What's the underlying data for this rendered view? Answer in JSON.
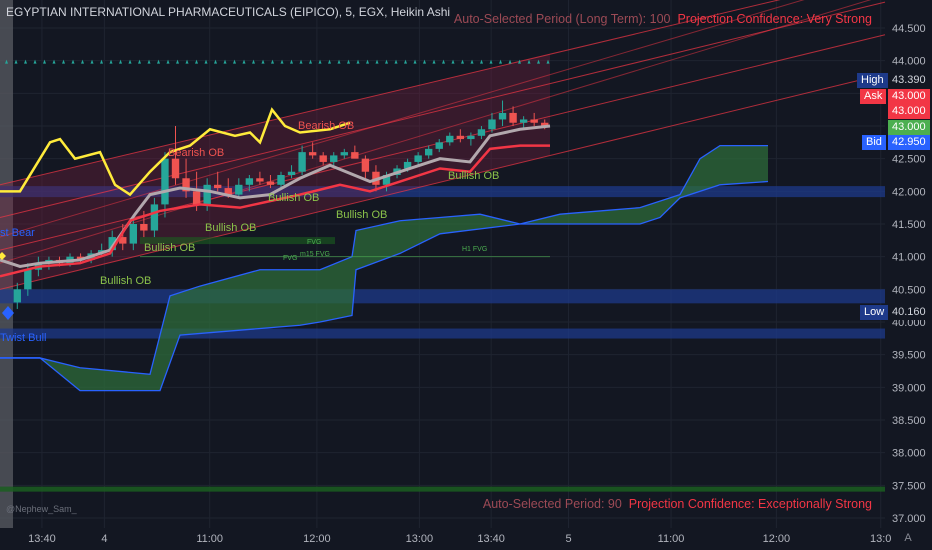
{
  "header": {
    "title": "EGYPTIAN INTERNATIONAL PHARMACEUTICALS (EIPICO), 5, EGX, Heikin Ashi"
  },
  "annotations": {
    "top_period": "Auto-Selected Period (Long Term): 100",
    "top_confidence": "Projection Confidence: Very Strong",
    "bottom_period": "Auto-Selected Period: 90",
    "bottom_confidence": "Projection Confidence: Exceptionally Strong",
    "credit": "@Nephew_Sam_"
  },
  "price_labels": {
    "high_label": "High",
    "high_value": "43.390",
    "ask_label": "Ask",
    "ask_value": "43.000",
    "last_value": "43.000",
    "bid_label": "Bid",
    "bid_value": "42.950",
    "mid_value": "42.950",
    "low_label": "Low",
    "low_value": "40.160"
  },
  "colors": {
    "background": "#131722",
    "bull": "#089981",
    "bear": "#f23645",
    "cloud": "#2e6b3a",
    "cloud_edge": "#2962ff",
    "yellow": "#ffeb3b",
    "band_blue": "#1e3a8a",
    "high_bg": "#1e3a8a",
    "last_bg": "#4caf50"
  },
  "chart_labels": {
    "bearish_ob_1": "Bearish OB",
    "bearish_ob_2": "Bearish OB",
    "bullish_ob_1": "Bullish OB",
    "bullish_ob_2": "Bullish OB",
    "bullish_ob_3": "Bullish OB",
    "bullish_ob_4": "Bullish OB",
    "bullish_ob_5": "Bullish OB",
    "fvg_1": "FVG",
    "fvg_2": "FVG",
    "fvg_m15": "m15 FVG",
    "fvg_h1": "H1 FVG",
    "bear_tag": "st Bear",
    "bull_tag": "Twist Bull"
  },
  "chart_data": {
    "type": "candlestick",
    "y_ticks": [
      "44.500",
      "44.000",
      "43.500",
      "43.000",
      "42.500",
      "42.000",
      "41.500",
      "41.000",
      "40.500",
      "40.000",
      "39.500",
      "39.000",
      "38.500",
      "38.000",
      "37.500",
      "37.000"
    ],
    "y_values": [
      44.5,
      44.0,
      43.5,
      43.0,
      42.5,
      42.0,
      41.5,
      41.0,
      40.5,
      40.0,
      39.5,
      39.0,
      38.5,
      38.0,
      37.5,
      37.0
    ],
    "ylim": [
      36.9,
      44.9
    ],
    "x_ticks": [
      {
        "label": "13:40",
        "x": 0.045
      },
      {
        "label": "4",
        "x": 0.112
      },
      {
        "label": "11:00",
        "x": 0.225
      },
      {
        "label": "12:00",
        "x": 0.34
      },
      {
        "label": "13:00",
        "x": 0.45
      },
      {
        "label": "13:40",
        "x": 0.527
      },
      {
        "label": "5",
        "x": 0.61
      },
      {
        "label": "11:00",
        "x": 0.72
      },
      {
        "label": "12:00",
        "x": 0.833
      },
      {
        "label": "13:0",
        "x": 0.945
      }
    ],
    "candles": [
      [
        40.3,
        40.6,
        40.2,
        40.5
      ],
      [
        40.5,
        40.9,
        40.4,
        40.8
      ],
      [
        40.8,
        41.0,
        40.7,
        40.9
      ],
      [
        40.9,
        41.0,
        40.8,
        40.95
      ],
      [
        40.95,
        41.0,
        40.85,
        40.9
      ],
      [
        40.9,
        41.05,
        40.85,
        41.0
      ],
      [
        41.0,
        41.05,
        40.9,
        40.95
      ],
      [
        40.95,
        41.1,
        40.9,
        41.05
      ],
      [
        41.05,
        41.2,
        41.0,
        41.1
      ],
      [
        41.1,
        41.4,
        41.0,
        41.3
      ],
      [
        41.3,
        41.5,
        41.1,
        41.2
      ],
      [
        41.2,
        41.6,
        41.1,
        41.5
      ],
      [
        41.5,
        41.7,
        41.3,
        41.4
      ],
      [
        41.4,
        41.9,
        41.3,
        41.8
      ],
      [
        41.8,
        42.6,
        41.6,
        42.5
      ],
      [
        42.5,
        43.0,
        42.1,
        42.2
      ],
      [
        42.2,
        42.5,
        41.9,
        42.0
      ],
      [
        42.0,
        42.3,
        41.7,
        41.8
      ],
      [
        41.8,
        42.2,
        41.7,
        42.1
      ],
      [
        42.1,
        42.3,
        42.0,
        42.05
      ],
      [
        42.05,
        42.2,
        41.9,
        41.95
      ],
      [
        41.95,
        42.2,
        41.9,
        42.1
      ],
      [
        42.1,
        42.25,
        42.0,
        42.2
      ],
      [
        42.2,
        42.3,
        42.1,
        42.15
      ],
      [
        42.15,
        42.25,
        42.05,
        42.1
      ],
      [
        42.1,
        42.3,
        42.05,
        42.25
      ],
      [
        42.25,
        42.4,
        42.2,
        42.3
      ],
      [
        42.3,
        42.7,
        42.25,
        42.6
      ],
      [
        42.6,
        42.75,
        42.5,
        42.55
      ],
      [
        42.55,
        42.6,
        42.4,
        42.45
      ],
      [
        42.45,
        42.6,
        42.4,
        42.55
      ],
      [
        42.55,
        42.65,
        42.5,
        42.6
      ],
      [
        42.6,
        42.7,
        42.55,
        42.5
      ],
      [
        42.5,
        42.55,
        42.2,
        42.3
      ],
      [
        42.3,
        42.4,
        42.0,
        42.1
      ],
      [
        42.1,
        42.3,
        42.0,
        42.25
      ],
      [
        42.25,
        42.4,
        42.2,
        42.35
      ],
      [
        42.35,
        42.5,
        42.3,
        42.45
      ],
      [
        42.45,
        42.6,
        42.4,
        42.55
      ],
      [
        42.55,
        42.7,
        42.5,
        42.65
      ],
      [
        42.65,
        42.8,
        42.6,
        42.75
      ],
      [
        42.75,
        42.9,
        42.7,
        42.85
      ],
      [
        42.85,
        42.95,
        42.75,
        42.8
      ],
      [
        42.8,
        42.9,
        42.7,
        42.85
      ],
      [
        42.85,
        43.0,
        42.8,
        42.95
      ],
      [
        42.95,
        43.2,
        42.9,
        43.1
      ],
      [
        43.1,
        43.39,
        43.0,
        43.2
      ],
      [
        43.2,
        43.3,
        43.0,
        43.05
      ],
      [
        43.05,
        43.15,
        42.95,
        43.1
      ],
      [
        43.1,
        43.2,
        43.0,
        43.05
      ],
      [
        43.05,
        43.1,
        42.95,
        43.0
      ]
    ],
    "series": [
      {
        "name": "",
        "role": "ma_upper",
        "values": [
          42.4,
          42.8,
          42.6,
          42.5,
          42.6,
          42.3,
          42.2,
          42.3,
          43.2,
          43.5,
          43.3,
          43.2,
          43.4,
          43.6,
          43.2,
          43.3,
          43.4,
          43.5,
          43.6,
          43.7,
          43.8
        ]
      },
      {
        "name": "",
        "role": "ma_mid",
        "values": [
          40.8,
          40.9,
          40.95,
          41.0,
          41.2,
          41.7,
          41.9,
          42.0,
          42.05,
          41.95,
          42.1,
          42.4,
          42.5,
          42.35,
          42.3,
          42.4,
          42.5,
          42.6,
          42.9,
          43.0
        ]
      },
      {
        "name": "",
        "role": "ma_low",
        "values": [
          40.9,
          40.95,
          41.0,
          41.1,
          41.3,
          41.7,
          41.8,
          41.85,
          41.9,
          41.95,
          42.0,
          42.05,
          42.1,
          42.2,
          42.3,
          42.4,
          42.5,
          42.6,
          42.7,
          42.7
        ]
      }
    ]
  }
}
